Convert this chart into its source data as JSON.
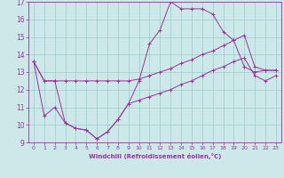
{
  "xlabel": "Windchill (Refroidissement éolien,°C)",
  "bg_color": "#cce8e8",
  "line_color": "#993399",
  "grid_color": "#99cccc",
  "xlim": [
    -0.5,
    23.5
  ],
  "ylim": [
    9.0,
    17.0
  ],
  "xticks": [
    0,
    1,
    2,
    3,
    4,
    5,
    6,
    7,
    8,
    9,
    10,
    11,
    12,
    13,
    14,
    15,
    16,
    17,
    18,
    19,
    20,
    21,
    22,
    23
  ],
  "yticks": [
    9,
    10,
    11,
    12,
    13,
    14,
    15,
    16,
    17
  ],
  "line1_x": [
    0,
    1,
    2,
    3,
    4,
    5,
    6,
    7,
    8,
    9,
    10,
    11,
    12,
    13,
    14,
    15,
    16,
    17,
    18,
    19,
    20,
    21,
    22,
    23
  ],
  "line1_y": [
    13.6,
    12.5,
    12.5,
    10.1,
    9.8,
    9.7,
    9.2,
    9.6,
    10.3,
    11.2,
    12.5,
    14.6,
    15.4,
    17.0,
    16.6,
    16.6,
    16.6,
    16.3,
    15.3,
    14.8,
    13.3,
    13.0,
    13.1,
    13.1
  ],
  "line2_x": [
    0,
    1,
    2,
    3,
    4,
    5,
    6,
    7,
    8,
    9,
    10,
    11,
    12,
    13,
    14,
    15,
    16,
    17,
    18,
    19,
    20,
    21,
    22,
    23
  ],
  "line2_y": [
    13.6,
    12.5,
    12.5,
    12.5,
    12.5,
    12.5,
    12.5,
    12.5,
    12.5,
    12.5,
    12.6,
    12.8,
    13.0,
    13.2,
    13.5,
    13.7,
    14.0,
    14.2,
    14.5,
    14.8,
    15.1,
    13.3,
    13.1,
    13.1
  ],
  "line3_x": [
    0,
    1,
    2,
    3,
    4,
    5,
    6,
    7,
    8,
    9,
    10,
    11,
    12,
    13,
    14,
    15,
    16,
    17,
    18,
    19,
    20,
    21,
    22,
    23
  ],
  "line3_y": [
    13.6,
    10.5,
    11.0,
    10.1,
    9.8,
    9.7,
    9.2,
    9.6,
    10.3,
    11.2,
    11.4,
    11.6,
    11.8,
    12.0,
    12.3,
    12.5,
    12.8,
    13.1,
    13.3,
    13.6,
    13.8,
    12.8,
    12.5,
    12.8
  ]
}
